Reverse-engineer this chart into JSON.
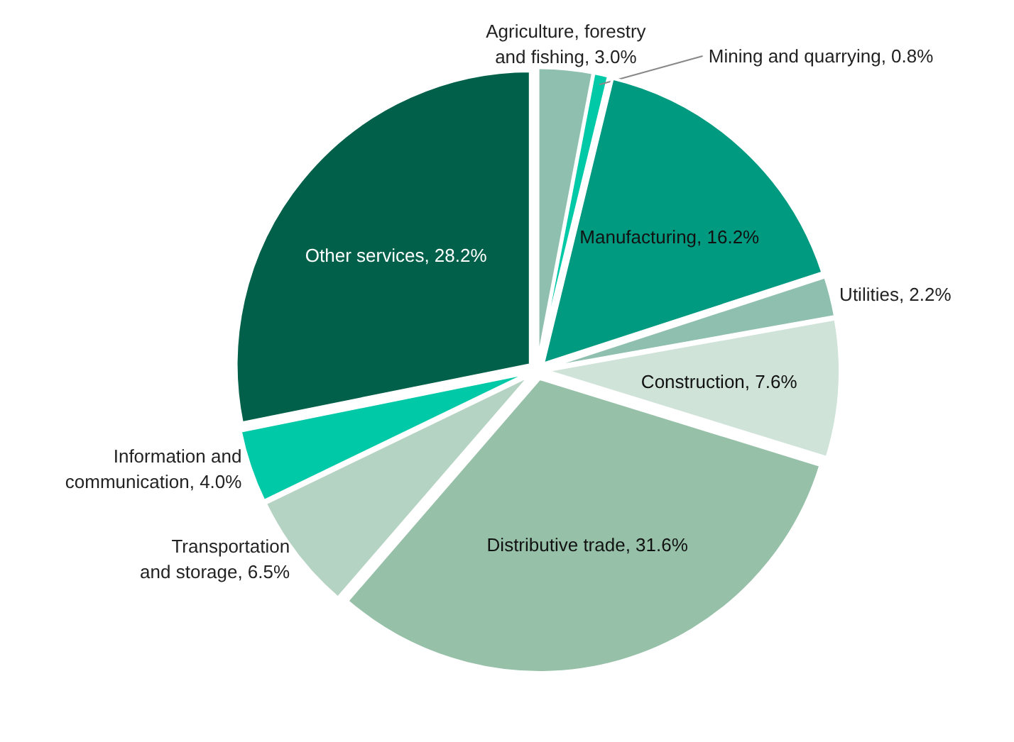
{
  "chart_data": {
    "type": "pie",
    "categories": [
      "Agriculture, forestry and fishing",
      "Mining and quarrying",
      "Manufacturing",
      "Utilities",
      "Construction",
      "Distributive trade",
      "Transportation and storage",
      "Information and communication",
      "Other services"
    ],
    "values": [
      3.0,
      0.8,
      16.2,
      2.2,
      7.6,
      31.6,
      6.5,
      4.0,
      28.2
    ],
    "value_labels": [
      "3.0%",
      "0.8%",
      "16.2%",
      "2.2%",
      "7.6%",
      "31.6%",
      "6.5%",
      "4.0%",
      "28.2%"
    ],
    "colors": [
      "#8fbfae",
      "#00c9a7",
      "#009a80",
      "#8fbfae",
      "#cfe3d8",
      "#96c0a8",
      "#b5d3c2",
      "#00c9a7",
      "#00604a"
    ]
  }
}
